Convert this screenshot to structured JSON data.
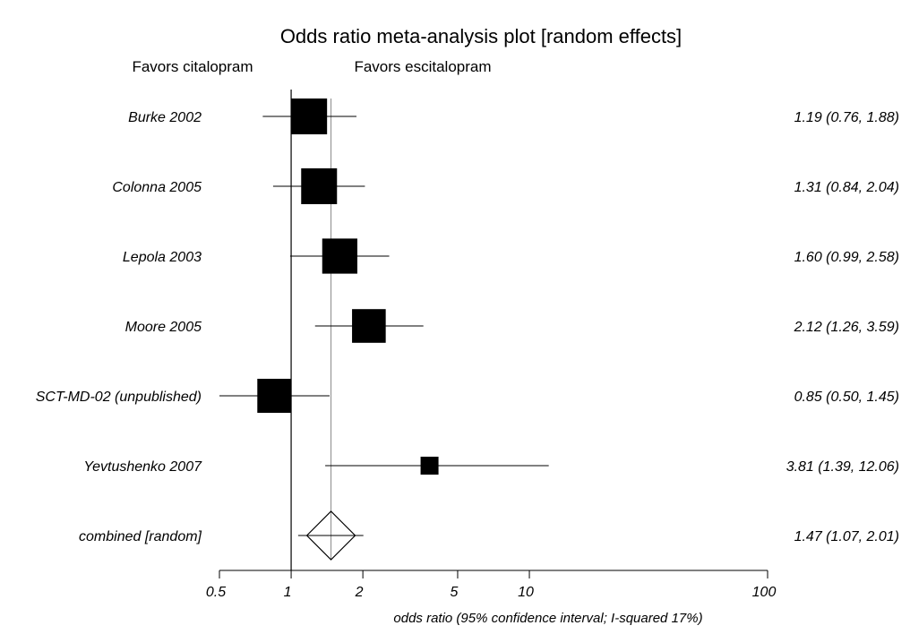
{
  "chart_data": {
    "type": "forest",
    "title": "Odds ratio meta-analysis plot [random effects]",
    "favors_left": "Favors citalopram",
    "favors_right": "Favors escitalopram",
    "xlabel": "odds ratio (95% confidence interval; I-squared 17%)",
    "x_scale": "log",
    "xlim": [
      0.5,
      100
    ],
    "x_ticks": [
      0.5,
      1,
      2,
      5,
      10,
      100
    ],
    "x_tick_labels": [
      "0.5",
      "1",
      "2",
      "5",
      "10",
      "100"
    ],
    "reference_line": 1,
    "studies": [
      {
        "name": "Burke 2002",
        "or": 1.19,
        "lower": 0.76,
        "upper": 1.88,
        "label": "1.19 (0.76, 1.88)",
        "weight": 1.0
      },
      {
        "name": "Colonna 2005",
        "or": 1.31,
        "lower": 0.84,
        "upper": 2.04,
        "label": "1.31 (0.84, 2.04)",
        "weight": 1.0
      },
      {
        "name": "Lepola 2003",
        "or": 1.6,
        "lower": 0.99,
        "upper": 2.58,
        "label": "1.60 (0.99, 2.58)",
        "weight": 0.98
      },
      {
        "name": "Moore 2005",
        "or": 2.12,
        "lower": 1.26,
        "upper": 3.59,
        "label": "2.12 (1.26, 3.59)",
        "weight": 0.94
      },
      {
        "name": "SCT-MD-02 (unpublished)",
        "or": 0.85,
        "lower": 0.5,
        "upper": 1.45,
        "label": "0.85 (0.50, 1.45)",
        "weight": 0.95
      },
      {
        "name": "Yevtushenko 2007",
        "or": 3.81,
        "lower": 1.39,
        "upper": 12.06,
        "label": "3.81 (1.39, 12.06)",
        "weight": 0.5
      }
    ],
    "combined": {
      "name": "combined [random]",
      "or": 1.47,
      "lower": 1.07,
      "upper": 2.01,
      "label": "1.47 (1.07, 2.01)"
    }
  }
}
